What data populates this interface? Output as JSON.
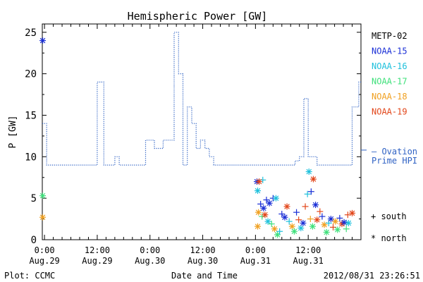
{
  "chart_data": {
    "type": "line",
    "title": "Hemispheric Power [GW]",
    "ylabel": "P [GW]",
    "xlabel": "Date and Time",
    "ylim": [
      0,
      26
    ],
    "yticks": [
      0,
      5,
      10,
      15,
      20,
      25
    ],
    "xlim": [
      "2012-08-28T23:30",
      "2012-09-01T00:00"
    ],
    "xticks": [
      {
        "x": "2012-08-29T00:00",
        "time": "0:00",
        "date": "Aug.29"
      },
      {
        "x": "2012-08-29T12:00",
        "time": "12:00",
        "date": "Aug.29"
      },
      {
        "x": "2012-08-30T00:00",
        "time": "0:00",
        "date": "Aug.30"
      },
      {
        "x": "2012-08-30T12:00",
        "time": "12:00",
        "date": "Aug.30"
      },
      {
        "x": "2012-08-31T00:00",
        "time": "0:00",
        "date": "Aug.31"
      },
      {
        "x": "2012-08-31T12:00",
        "time": "12:00",
        "date": "Aug.31"
      }
    ],
    "ovation": {
      "name": "Ovation Prime HPI",
      "color": "#2f62c4",
      "points": [
        [
          "2012-08-28T23:30",
          14
        ],
        [
          "2012-08-29T00:30",
          9
        ],
        [
          "2012-08-29T12:00",
          19
        ],
        [
          "2012-08-29T13:30",
          9
        ],
        [
          "2012-08-29T16:00",
          10
        ],
        [
          "2012-08-29T17:00",
          9
        ],
        [
          "2012-08-29T23:00",
          12
        ],
        [
          "2012-08-30T01:00",
          11
        ],
        [
          "2012-08-30T03:00",
          12
        ],
        [
          "2012-08-30T05:30",
          25
        ],
        [
          "2012-08-30T06:30",
          20
        ],
        [
          "2012-08-30T07:30",
          9
        ],
        [
          "2012-08-30T08:30",
          16
        ],
        [
          "2012-08-30T09:30",
          14
        ],
        [
          "2012-08-30T10:30",
          11
        ],
        [
          "2012-08-30T11:30",
          12
        ],
        [
          "2012-08-30T12:30",
          11
        ],
        [
          "2012-08-30T13:30",
          10
        ],
        [
          "2012-08-30T14:30",
          9
        ],
        [
          "2012-08-31T09:00",
          9.5
        ],
        [
          "2012-08-31T10:00",
          10
        ],
        [
          "2012-08-31T11:00",
          17
        ],
        [
          "2012-08-31T12:00",
          10
        ],
        [
          "2012-08-31T14:00",
          9
        ],
        [
          "2012-08-31T22:00",
          16
        ],
        [
          "2012-08-31T23:30",
          19
        ]
      ]
    },
    "series": [
      {
        "name": "METP-02",
        "color": "#000000"
      },
      {
        "name": "NOAA-15",
        "color": "#1a2fd6"
      },
      {
        "name": "NOAA-16",
        "color": "#1ec0dc"
      },
      {
        "name": "NOAA-17",
        "color": "#3ee07a"
      },
      {
        "name": "NOAA-18",
        "color": "#f0a020"
      },
      {
        "name": "NOAA-19",
        "color": "#e2461a"
      }
    ],
    "scatter": [
      {
        "x": "2012-08-28T23:35",
        "y": 24,
        "s": 1,
        "m": "north"
      },
      {
        "x": "2012-08-28T23:35",
        "y": 5.3,
        "s": 3,
        "m": "north"
      },
      {
        "x": "2012-08-28T23:35",
        "y": 2.7,
        "s": 4,
        "m": "north"
      },
      {
        "x": "2012-08-31T00:20",
        "y": 7.0,
        "s": 1,
        "m": "north"
      },
      {
        "x": "2012-08-31T01:40",
        "y": 7.2,
        "s": 2,
        "m": "south"
      },
      {
        "x": "2012-08-31T00:50",
        "y": 7.0,
        "s": 5,
        "m": "north"
      },
      {
        "x": "2012-08-31T00:30",
        "y": 5.9,
        "s": 2,
        "m": "north"
      },
      {
        "x": "2012-08-31T01:10",
        "y": 4.3,
        "s": 1,
        "m": "south"
      },
      {
        "x": "2012-08-31T01:50",
        "y": 3.8,
        "s": 1,
        "m": "north"
      },
      {
        "x": "2012-08-31T02:30",
        "y": 4.8,
        "s": 1,
        "m": "south"
      },
      {
        "x": "2012-08-31T03:10",
        "y": 4.4,
        "s": 1,
        "m": "north"
      },
      {
        "x": "2012-08-31T04:00",
        "y": 5.0,
        "s": 1,
        "m": "south"
      },
      {
        "x": "2012-08-31T04:40",
        "y": 5.0,
        "s": 2,
        "m": "north"
      },
      {
        "x": "2012-08-31T00:40",
        "y": 3.3,
        "s": 4,
        "m": "north"
      },
      {
        "x": "2012-08-31T00:30",
        "y": 1.6,
        "s": 4,
        "m": "north"
      },
      {
        "x": "2012-08-31T01:30",
        "y": 2.8,
        "s": 3,
        "m": "south"
      },
      {
        "x": "2012-08-31T02:10",
        "y": 3.0,
        "s": 5,
        "m": "north"
      },
      {
        "x": "2012-08-31T02:50",
        "y": 2.2,
        "s": 2,
        "m": "north"
      },
      {
        "x": "2012-08-31T03:40",
        "y": 1.9,
        "s": 3,
        "m": "south"
      },
      {
        "x": "2012-08-31T04:20",
        "y": 1.3,
        "s": 4,
        "m": "north"
      },
      {
        "x": "2012-08-31T05:00",
        "y": 0.6,
        "s": 3,
        "m": "north"
      },
      {
        "x": "2012-08-31T05:30",
        "y": 1.0,
        "s": 2,
        "m": "south"
      },
      {
        "x": "2012-08-31T06:00",
        "y": 3.1,
        "s": 1,
        "m": "south"
      },
      {
        "x": "2012-08-31T06:40",
        "y": 2.7,
        "s": 1,
        "m": "north"
      },
      {
        "x": "2012-08-31T07:10",
        "y": 4.0,
        "s": 5,
        "m": "north"
      },
      {
        "x": "2012-08-31T07:40",
        "y": 2.2,
        "s": 2,
        "m": "south"
      },
      {
        "x": "2012-08-31T08:20",
        "y": 1.6,
        "s": 4,
        "m": "north"
      },
      {
        "x": "2012-08-31T08:50",
        "y": 1.0,
        "s": 3,
        "m": "north"
      },
      {
        "x": "2012-08-31T09:20",
        "y": 3.3,
        "s": 1,
        "m": "south"
      },
      {
        "x": "2012-08-31T09:50",
        "y": 2.4,
        "s": 5,
        "m": "south"
      },
      {
        "x": "2012-08-31T10:20",
        "y": 1.4,
        "s": 2,
        "m": "north"
      },
      {
        "x": "2012-08-31T10:50",
        "y": 2.0,
        "s": 1,
        "m": "north"
      },
      {
        "x": "2012-08-31T11:20",
        "y": 4.0,
        "s": 5,
        "m": "south"
      },
      {
        "x": "2012-08-31T11:50",
        "y": 5.5,
        "s": 2,
        "m": "south"
      },
      {
        "x": "2012-08-31T12:10",
        "y": 8.2,
        "s": 2,
        "m": "north"
      },
      {
        "x": "2012-08-31T12:40",
        "y": 5.8,
        "s": 1,
        "m": "south"
      },
      {
        "x": "2012-08-31T13:10",
        "y": 7.3,
        "s": 5,
        "m": "north"
      },
      {
        "x": "2012-08-31T13:40",
        "y": 4.2,
        "s": 1,
        "m": "north"
      },
      {
        "x": "2012-08-31T12:30",
        "y": 2.5,
        "s": 4,
        "m": "south"
      },
      {
        "x": "2012-08-31T13:00",
        "y": 1.6,
        "s": 3,
        "m": "north"
      },
      {
        "x": "2012-08-31T14:00",
        "y": 2.4,
        "s": 5,
        "m": "north"
      },
      {
        "x": "2012-08-31T14:40",
        "y": 3.4,
        "s": 5,
        "m": "south"
      },
      {
        "x": "2012-08-31T15:10",
        "y": 2.8,
        "s": 1,
        "m": "south"
      },
      {
        "x": "2012-08-31T15:40",
        "y": 1.8,
        "s": 4,
        "m": "north"
      },
      {
        "x": "2012-08-31T16:10",
        "y": 0.9,
        "s": 3,
        "m": "north"
      },
      {
        "x": "2012-08-31T16:40",
        "y": 2.0,
        "s": 2,
        "m": "south"
      },
      {
        "x": "2012-08-31T17:10",
        "y": 2.5,
        "s": 1,
        "m": "north"
      },
      {
        "x": "2012-08-31T17:40",
        "y": 1.5,
        "s": 5,
        "m": "south"
      },
      {
        "x": "2012-08-31T18:10",
        "y": 2.2,
        "s": 4,
        "m": "north"
      },
      {
        "x": "2012-08-31T18:40",
        "y": 1.2,
        "s": 3,
        "m": "north"
      },
      {
        "x": "2012-08-31T19:10",
        "y": 2.6,
        "s": 1,
        "m": "south"
      },
      {
        "x": "2012-08-31T19:40",
        "y": 1.9,
        "s": 5,
        "m": "north"
      },
      {
        "x": "2012-08-31T20:10",
        "y": 2.1,
        "s": 1,
        "m": "north"
      },
      {
        "x": "2012-08-31T20:40",
        "y": 1.3,
        "s": 3,
        "m": "south"
      },
      {
        "x": "2012-08-31T21:00",
        "y": 3.0,
        "s": 5,
        "m": "south"
      },
      {
        "x": "2012-08-31T21:10",
        "y": 2.0,
        "s": 2,
        "m": "north"
      },
      {
        "x": "2012-08-31T22:00",
        "y": 3.2,
        "s": 5,
        "m": "north"
      }
    ]
  },
  "title": "Hemispheric Power [GW]",
  "ylabel": "P [GW]",
  "xlabel": "Date and Time",
  "footer": {
    "left": "Plot: CCMC",
    "right": "2012/08/31  23:26:51"
  },
  "ovation_label": [
    "— Ovation",
    "Prime HPI"
  ],
  "marker_key": {
    "south": "+ south",
    "north": "* north"
  }
}
